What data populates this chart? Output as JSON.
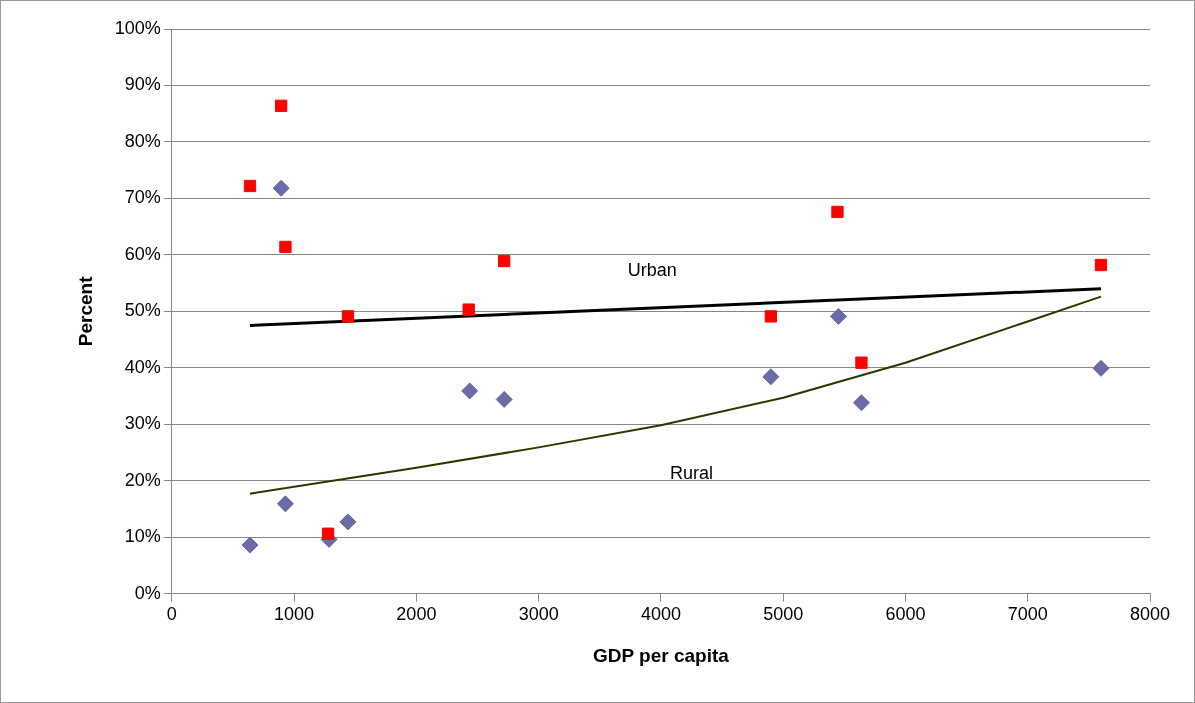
{
  "chart_data": {
    "type": "scatter",
    "xlabel": "GDP per capita",
    "ylabel": "Percent",
    "xlim": [
      0,
      8000
    ],
    "xticks": [
      0,
      1000,
      2000,
      3000,
      4000,
      5000,
      6000,
      7000,
      8000
    ],
    "ylim": [
      0,
      100
    ],
    "yticks": [
      {
        "value": 0,
        "label": "0%"
      },
      {
        "value": 10,
        "label": "10%"
      },
      {
        "value": 20,
        "label": "20%"
      },
      {
        "value": 30,
        "label": "30%"
      },
      {
        "value": 40,
        "label": "40%"
      },
      {
        "value": 50,
        "label": "50%"
      },
      {
        "value": 60,
        "label": "60%"
      },
      {
        "value": 70,
        "label": "70%"
      },
      {
        "value": 80,
        "label": "80%"
      },
      {
        "value": 90,
        "label": "90%"
      },
      {
        "value": 100,
        "label": "100%"
      }
    ],
    "grid": "y",
    "legend": false,
    "series": [
      {
        "type": "scatter",
        "marker": "square",
        "color": "#ff0000",
        "x": [
          639,
          894,
          929,
          1440,
          1278,
          2428,
          2718,
          4899,
          5444,
          5640,
          7599
        ],
        "values": [
          72.2,
          86.4,
          61.4,
          49.1,
          10.6,
          50.3,
          58.9,
          49.1,
          67.6,
          40.9,
          58.2
        ]
      },
      {
        "type": "scatter",
        "marker": "diamond",
        "color": "#6b6ba8",
        "x": [
          639,
          894,
          929,
          1286,
          1440,
          2436,
          2718,
          4899,
          5452,
          5640,
          7599
        ],
        "values": [
          8.6,
          71.8,
          15.9,
          9.6,
          12.7,
          35.9,
          34.4,
          38.4,
          49.1,
          33.8,
          39.9
        ]
      },
      {
        "type": "line",
        "marker": "none",
        "color": "#000000",
        "x": [
          639,
          7599
        ],
        "values": [
          47.5,
          54
        ]
      },
      {
        "type": "line",
        "marker": "none",
        "color": "#333300",
        "x": [
          639,
          2000,
          3000,
          4000,
          5000,
          6000,
          7000,
          7599
        ],
        "values": [
          17.7,
          22.3,
          25.9,
          29.8,
          34.7,
          40.9,
          48.2,
          52.6
        ]
      }
    ],
    "annotations": [
      {
        "text": "Urban",
        "x": 3930,
        "y": 50.6
      },
      {
        "text": "Rural",
        "x": 4250,
        "y": 31.2
      }
    ]
  }
}
